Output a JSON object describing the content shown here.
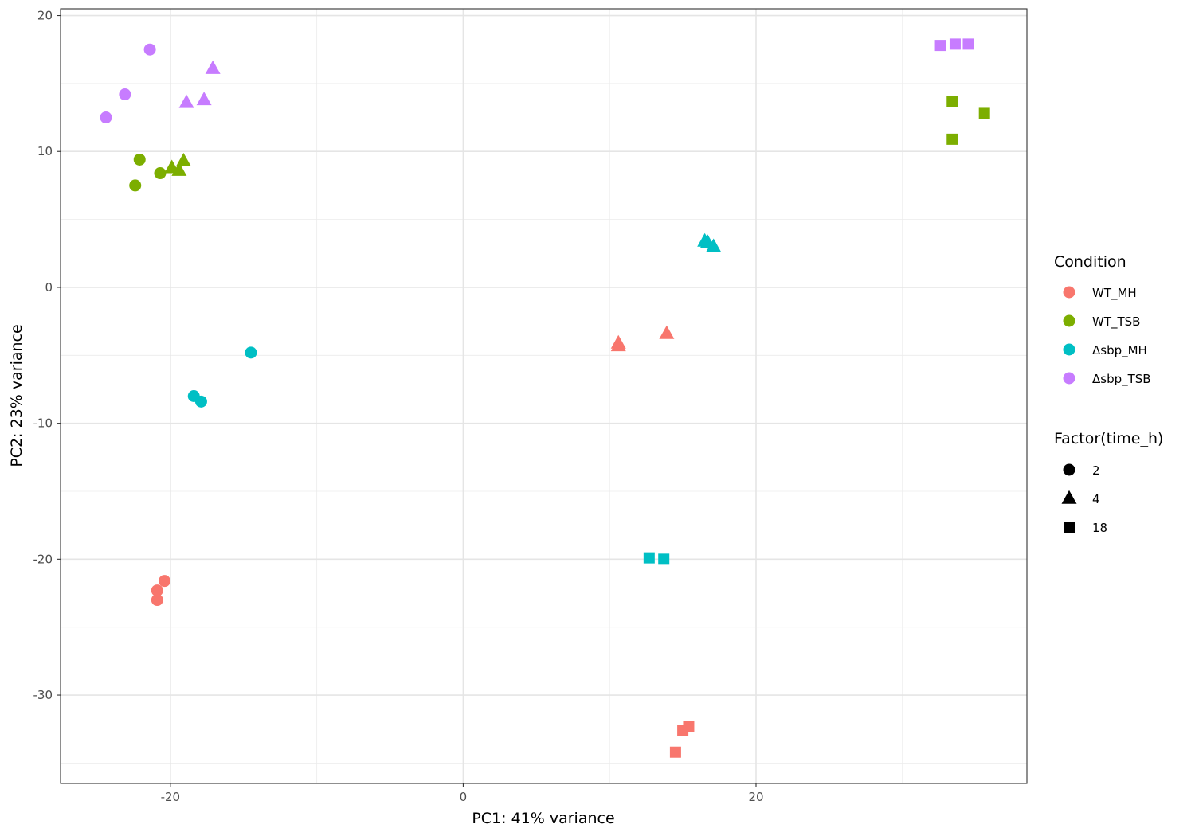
{
  "chart_data": {
    "type": "scatter",
    "title": "",
    "xlabel": "PC1: 41% variance",
    "ylabel": "PC2: 23% variance",
    "xlim": [
      -27.5,
      38.5
    ],
    "ylim": [
      -36.5,
      20.5
    ],
    "x_ticks": [
      -20,
      0,
      20
    ],
    "y_ticks": [
      20,
      10,
      0,
      -10,
      -20,
      -30
    ],
    "x_minor_ticks": [
      -10,
      10,
      30
    ],
    "y_minor_ticks": [
      15,
      5,
      -5,
      -15,
      -25,
      -35
    ],
    "grid": true,
    "legend_position": "right",
    "color_legend": {
      "title": "Condition",
      "entries": [
        {
          "label": "WT_MH",
          "color": "#F8766D"
        },
        {
          "label": "WT_TSB",
          "color": "#7CAE00"
        },
        {
          "label": "Δsbp_MH",
          "color": "#00BFC4"
        },
        {
          "label": "Δsbp_TSB",
          "color": "#C77CFF"
        }
      ]
    },
    "shape_legend": {
      "title": "Factor(time_h)",
      "entries": [
        {
          "label": "2",
          "shape": "circle"
        },
        {
          "label": "4",
          "shape": "triangle"
        },
        {
          "label": "18",
          "shape": "square"
        }
      ]
    },
    "series": [
      {
        "name": "WT_MH",
        "color": "#F8766D",
        "points": [
          {
            "x": -20.4,
            "y": -21.6,
            "time": "2"
          },
          {
            "x": -20.9,
            "y": -22.3,
            "time": "2"
          },
          {
            "x": -20.9,
            "y": -23.0,
            "time": "2"
          },
          {
            "x": 10.6,
            "y": -4.1,
            "time": "4"
          },
          {
            "x": 10.6,
            "y": -4.3,
            "time": "4"
          },
          {
            "x": 13.9,
            "y": -3.4,
            "time": "4"
          },
          {
            "x": 14.5,
            "y": -34.2,
            "time": "18"
          },
          {
            "x": 15.0,
            "y": -32.6,
            "time": "18"
          },
          {
            "x": 15.4,
            "y": -32.3,
            "time": "18"
          }
        ]
      },
      {
        "name": "WT_TSB",
        "color": "#7CAE00",
        "points": [
          {
            "x": -22.1,
            "y": 9.4,
            "time": "2"
          },
          {
            "x": -22.4,
            "y": 7.5,
            "time": "2"
          },
          {
            "x": -20.7,
            "y": 8.4,
            "time": "2"
          },
          {
            "x": -19.9,
            "y": 8.8,
            "time": "4"
          },
          {
            "x": -19.4,
            "y": 8.6,
            "time": "4"
          },
          {
            "x": -19.1,
            "y": 9.3,
            "time": "4"
          },
          {
            "x": 33.4,
            "y": 13.7,
            "time": "18"
          },
          {
            "x": 35.6,
            "y": 12.8,
            "time": "18"
          },
          {
            "x": 33.4,
            "y": 10.9,
            "time": "18"
          }
        ]
      },
      {
        "name": "Δsbp_MH",
        "color": "#00BFC4",
        "points": [
          {
            "x": -14.5,
            "y": -4.8,
            "time": "2"
          },
          {
            "x": -18.4,
            "y": -8.0,
            "time": "2"
          },
          {
            "x": -17.9,
            "y": -8.4,
            "time": "2"
          },
          {
            "x": 16.5,
            "y": 3.4,
            "time": "4"
          },
          {
            "x": 16.7,
            "y": 3.3,
            "time": "4"
          },
          {
            "x": 17.1,
            "y": 3.0,
            "time": "4"
          },
          {
            "x": 12.7,
            "y": -19.9,
            "time": "18"
          },
          {
            "x": 13.7,
            "y": -20.0,
            "time": "18"
          }
        ]
      },
      {
        "name": "Δsbp_TSB",
        "color": "#C77CFF",
        "points": [
          {
            "x": -21.4,
            "y": 17.5,
            "time": "2"
          },
          {
            "x": -23.1,
            "y": 14.2,
            "time": "2"
          },
          {
            "x": -24.4,
            "y": 12.5,
            "time": "2"
          },
          {
            "x": -18.9,
            "y": 13.6,
            "time": "4"
          },
          {
            "x": -17.7,
            "y": 13.8,
            "time": "4"
          },
          {
            "x": -17.1,
            "y": 16.1,
            "time": "4"
          },
          {
            "x": 32.6,
            "y": 17.8,
            "time": "18"
          },
          {
            "x": 33.6,
            "y": 17.9,
            "time": "18"
          },
          {
            "x": 34.5,
            "y": 17.9,
            "time": "18"
          }
        ]
      }
    ]
  }
}
